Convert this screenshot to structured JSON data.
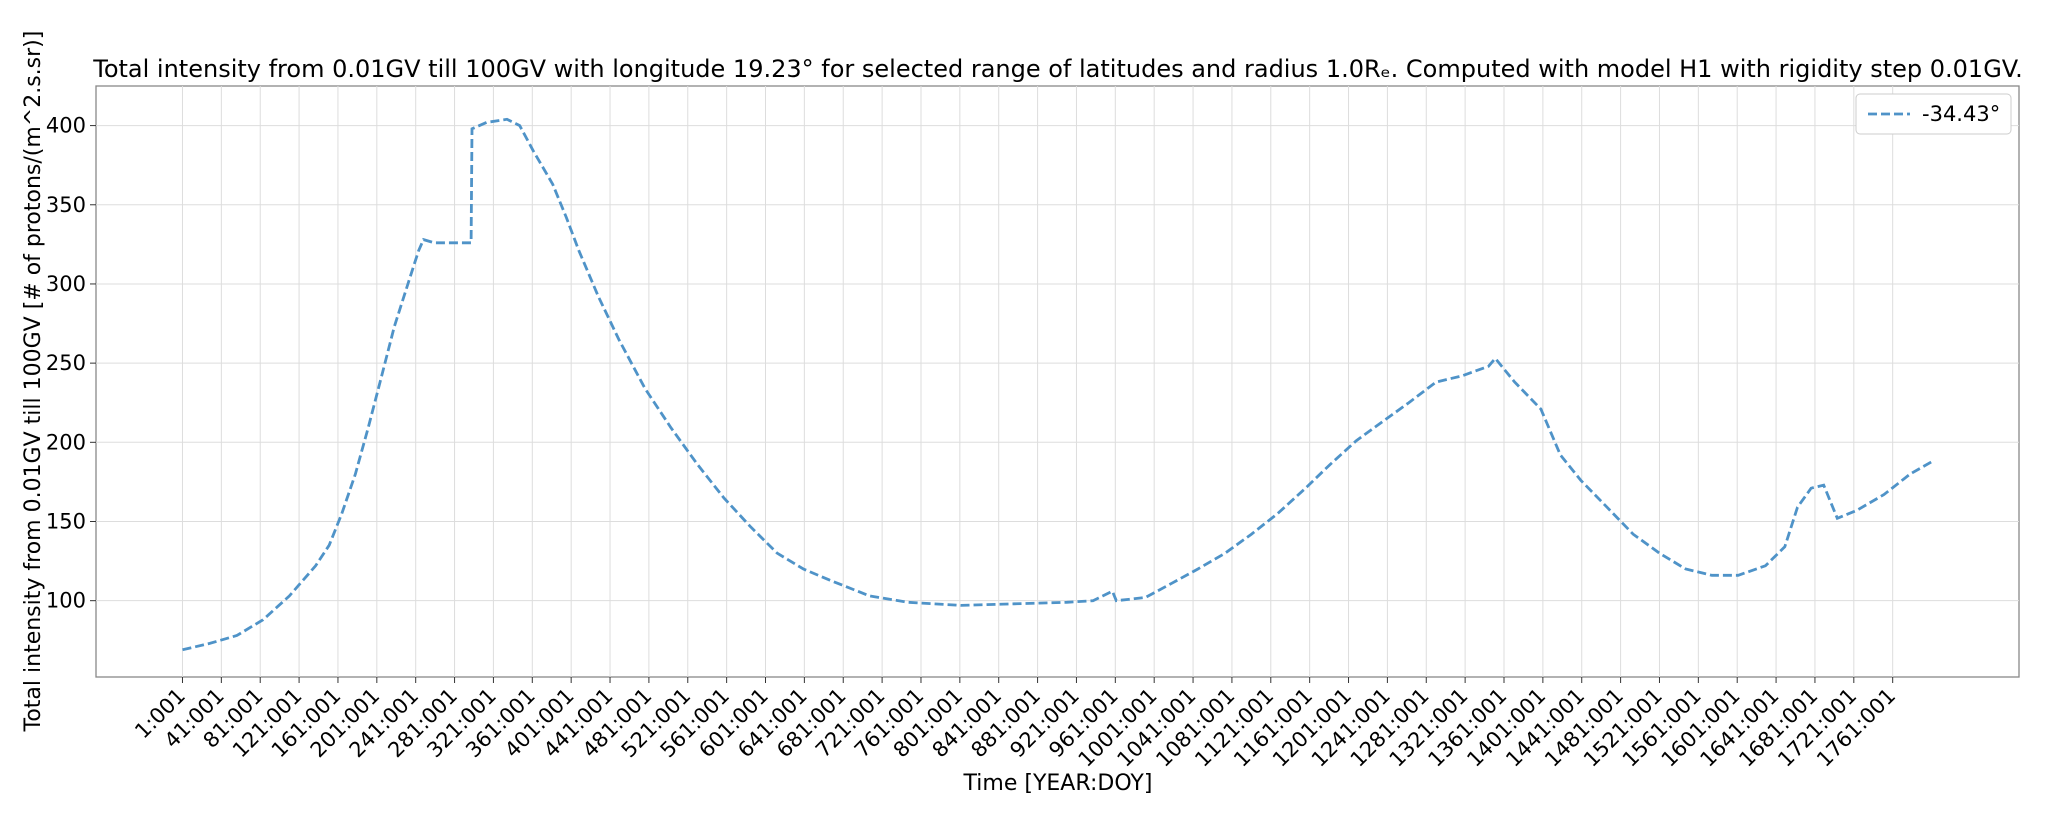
{
  "chart_data": {
    "type": "line",
    "title": "Total intensity from 0.01GV till 100GV with longitude 19.23° for selected range of latitudes and radius 1.0Rₑ. Computed with model H1 with rigidity step 0.01GV.",
    "x_label": "Time [YEAR:DOY]",
    "y_label": "Total intensity from 0.01GV till 100GV [# of protons/(m^2.s.sr)]",
    "x": [
      1,
      29,
      57,
      84,
      111,
      138,
      152,
      165,
      179,
      192,
      206,
      219,
      233,
      244,
      249,
      260,
      274,
      298,
      299,
      314,
      335,
      348,
      362,
      382,
      396,
      409,
      429,
      450,
      477,
      504,
      531,
      558,
      585,
      613,
      640,
      667,
      708,
      748,
      802,
      857,
      911,
      938,
      958,
      962,
      992,
      1019,
      1046,
      1074,
      1101,
      1128,
      1155,
      1182,
      1209,
      1236,
      1263,
      1291,
      1318,
      1345,
      1352,
      1372,
      1399,
      1419,
      1440,
      1467,
      1494,
      1521,
      1548,
      1575,
      1602,
      1630,
      1650,
      1663,
      1677,
      1690,
      1704,
      1724,
      1752,
      1779,
      1802
    ],
    "series": [
      {
        "name": "-34.43°",
        "color": "#4f93c8",
        "values": [
          69,
          73,
          78,
          88,
          103,
          122,
          135,
          155,
          180,
          209,
          242,
          273,
          300,
          321,
          328,
          326,
          326,
          326,
          398,
          402,
          404,
          400,
          384,
          363,
          342,
          321,
          292,
          265,
          234,
          209,
          186,
          165,
          147,
          130,
          120,
          113,
          103,
          99,
          97,
          98,
          99,
          100,
          106,
          100,
          102,
          111,
          120,
          130,
          142,
          155,
          170,
          186,
          201,
          213,
          225,
          238,
          242,
          248,
          253,
          238,
          221,
          192,
          176,
          159,
          142,
          130,
          120,
          116,
          116,
          122,
          134,
          159,
          171,
          173,
          152,
          157,
          167,
          180,
          188
        ]
      }
    ],
    "xlim": [
      -88,
      1891
    ],
    "ylim": [
      51.8,
      425
    ],
    "yticks": [
      100,
      150,
      200,
      250,
      300,
      350,
      400
    ],
    "xticks": [
      {
        "value": 1,
        "label": "1:001"
      },
      {
        "value": 41,
        "label": "41:001"
      },
      {
        "value": 81,
        "label": "81:001"
      },
      {
        "value": 121,
        "label": "121:001"
      },
      {
        "value": 161,
        "label": "161:001"
      },
      {
        "value": 201,
        "label": "201:001"
      },
      {
        "value": 241,
        "label": "241:001"
      },
      {
        "value": 281,
        "label": "281:001"
      },
      {
        "value": 321,
        "label": "321:001"
      },
      {
        "value": 361,
        "label": "361:001"
      },
      {
        "value": 401,
        "label": "401:001"
      },
      {
        "value": 441,
        "label": "441:001"
      },
      {
        "value": 481,
        "label": "481:001"
      },
      {
        "value": 521,
        "label": "521:001"
      },
      {
        "value": 561,
        "label": "561:001"
      },
      {
        "value": 601,
        "label": "601:001"
      },
      {
        "value": 641,
        "label": "641:001"
      },
      {
        "value": 681,
        "label": "681:001"
      },
      {
        "value": 721,
        "label": "721:001"
      },
      {
        "value": 761,
        "label": "761:001"
      },
      {
        "value": 801,
        "label": "801:001"
      },
      {
        "value": 841,
        "label": "841:001"
      },
      {
        "value": 881,
        "label": "881:001"
      },
      {
        "value": 921,
        "label": "921:001"
      },
      {
        "value": 961,
        "label": "961:001"
      },
      {
        "value": 1001,
        "label": "1001:001"
      },
      {
        "value": 1041,
        "label": "1041:001"
      },
      {
        "value": 1081,
        "label": "1081:001"
      },
      {
        "value": 1121,
        "label": "1121:001"
      },
      {
        "value": 1161,
        "label": "1161:001"
      },
      {
        "value": 1201,
        "label": "1201:001"
      },
      {
        "value": 1241,
        "label": "1241:001"
      },
      {
        "value": 1281,
        "label": "1281:001"
      },
      {
        "value": 1321,
        "label": "1321:001"
      },
      {
        "value": 1361,
        "label": "1361:001"
      },
      {
        "value": 1401,
        "label": "1401:001"
      },
      {
        "value": 1441,
        "label": "1441:001"
      },
      {
        "value": 1481,
        "label": "1481:001"
      },
      {
        "value": 1521,
        "label": "1521:001"
      },
      {
        "value": 1561,
        "label": "1561:001"
      },
      {
        "value": 1601,
        "label": "1601:001"
      },
      {
        "value": 1641,
        "label": "1641:001"
      },
      {
        "value": 1681,
        "label": "1681:001"
      },
      {
        "value": 1721,
        "label": "1721:001"
      },
      {
        "value": 1761,
        "label": "1761:001"
      }
    ],
    "grid": true,
    "legend": "upper right",
    "line_style": "dashed"
  }
}
